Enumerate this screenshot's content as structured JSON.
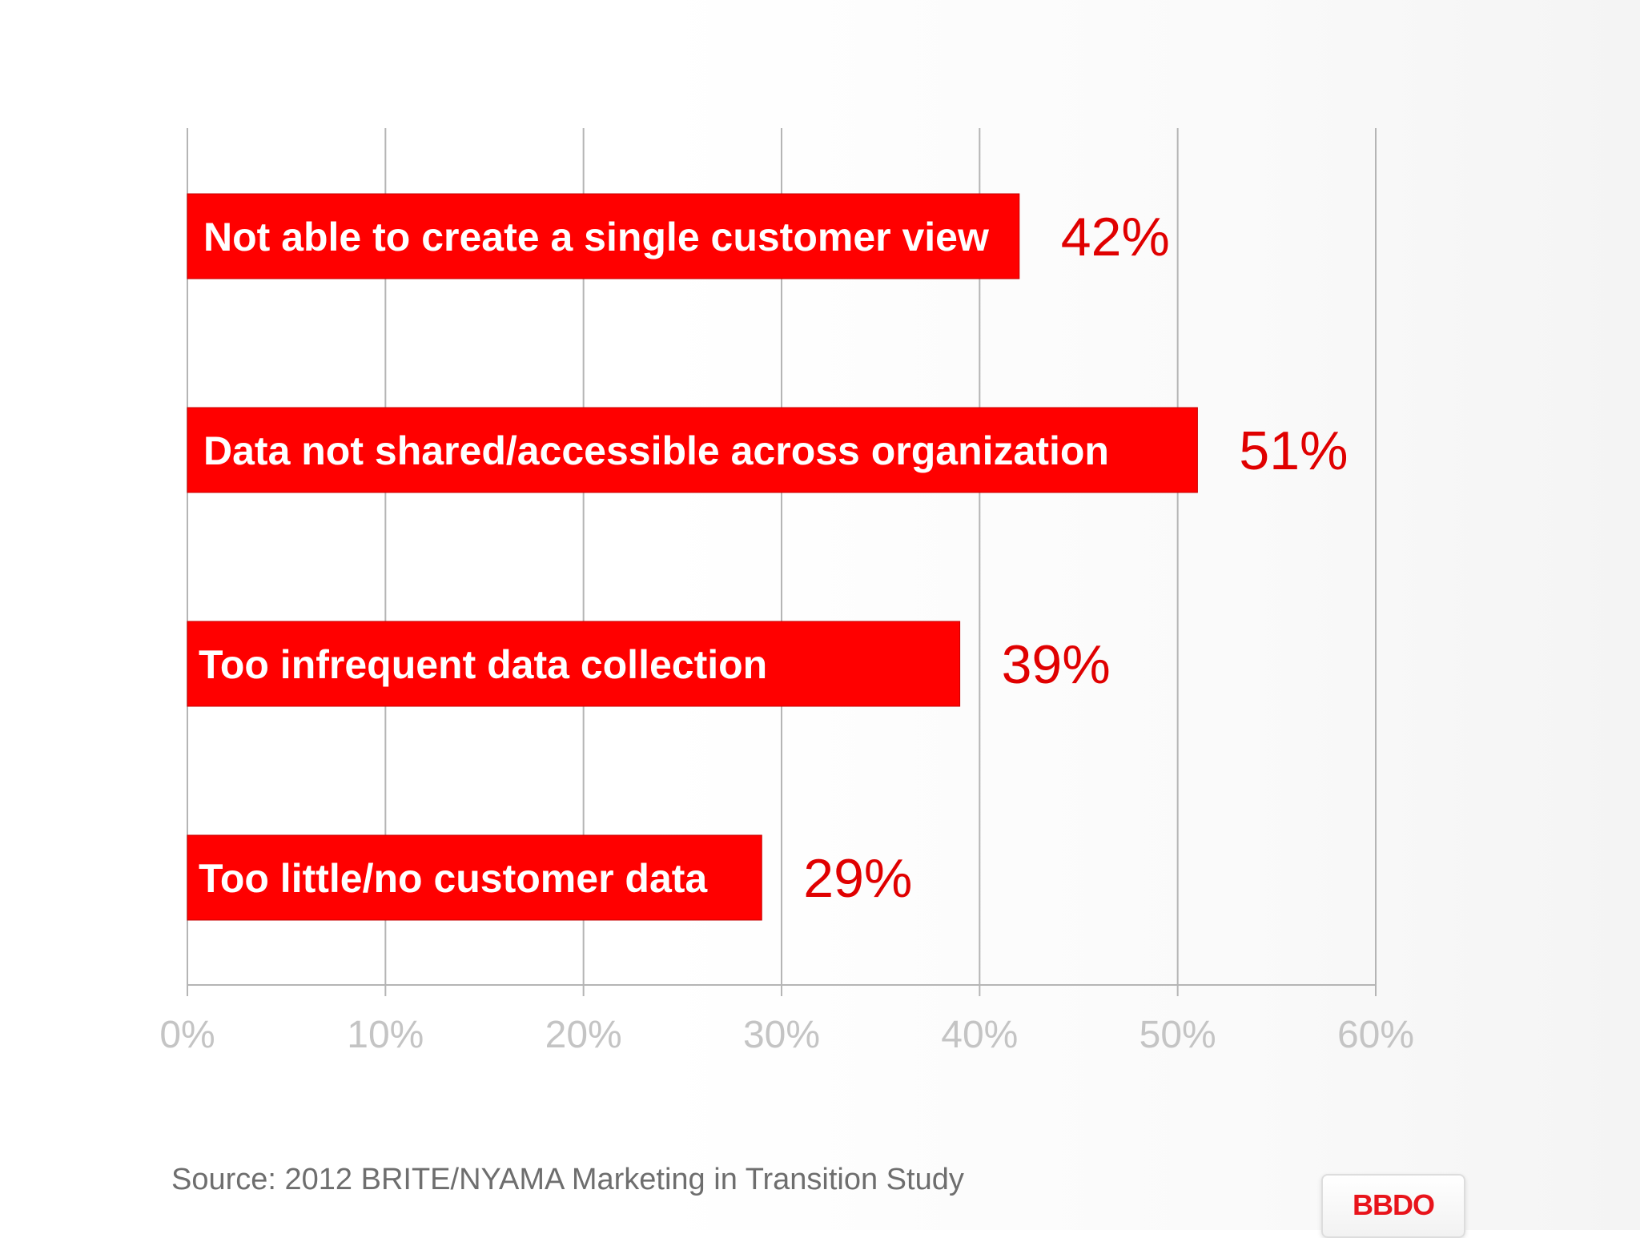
{
  "chart_data": {
    "type": "bar",
    "orientation": "horizontal",
    "categories": [
      "Not able to create a single customer view",
      "Data not shared/accessible across organization",
      "Too infrequent data collection",
      "Too little/no customer data"
    ],
    "values": [
      42,
      51,
      39,
      29
    ],
    "value_labels": [
      "42%",
      "51%",
      "39%",
      "29%"
    ],
    "x_ticks": [
      "0%",
      "10%",
      "20%",
      "30%",
      "40%",
      "50%",
      "60%"
    ],
    "xlim": [
      0,
      60
    ],
    "grid": true,
    "bar_color": "#ff0000",
    "value_label_color": "#e00000",
    "tick_label_color": "#c4c4c4"
  },
  "footer": {
    "source": "Source: 2012 BRITE/NYAMA Marketing in Transition Study"
  },
  "logo": {
    "text": "BBDO",
    "color": "#e8141b"
  }
}
